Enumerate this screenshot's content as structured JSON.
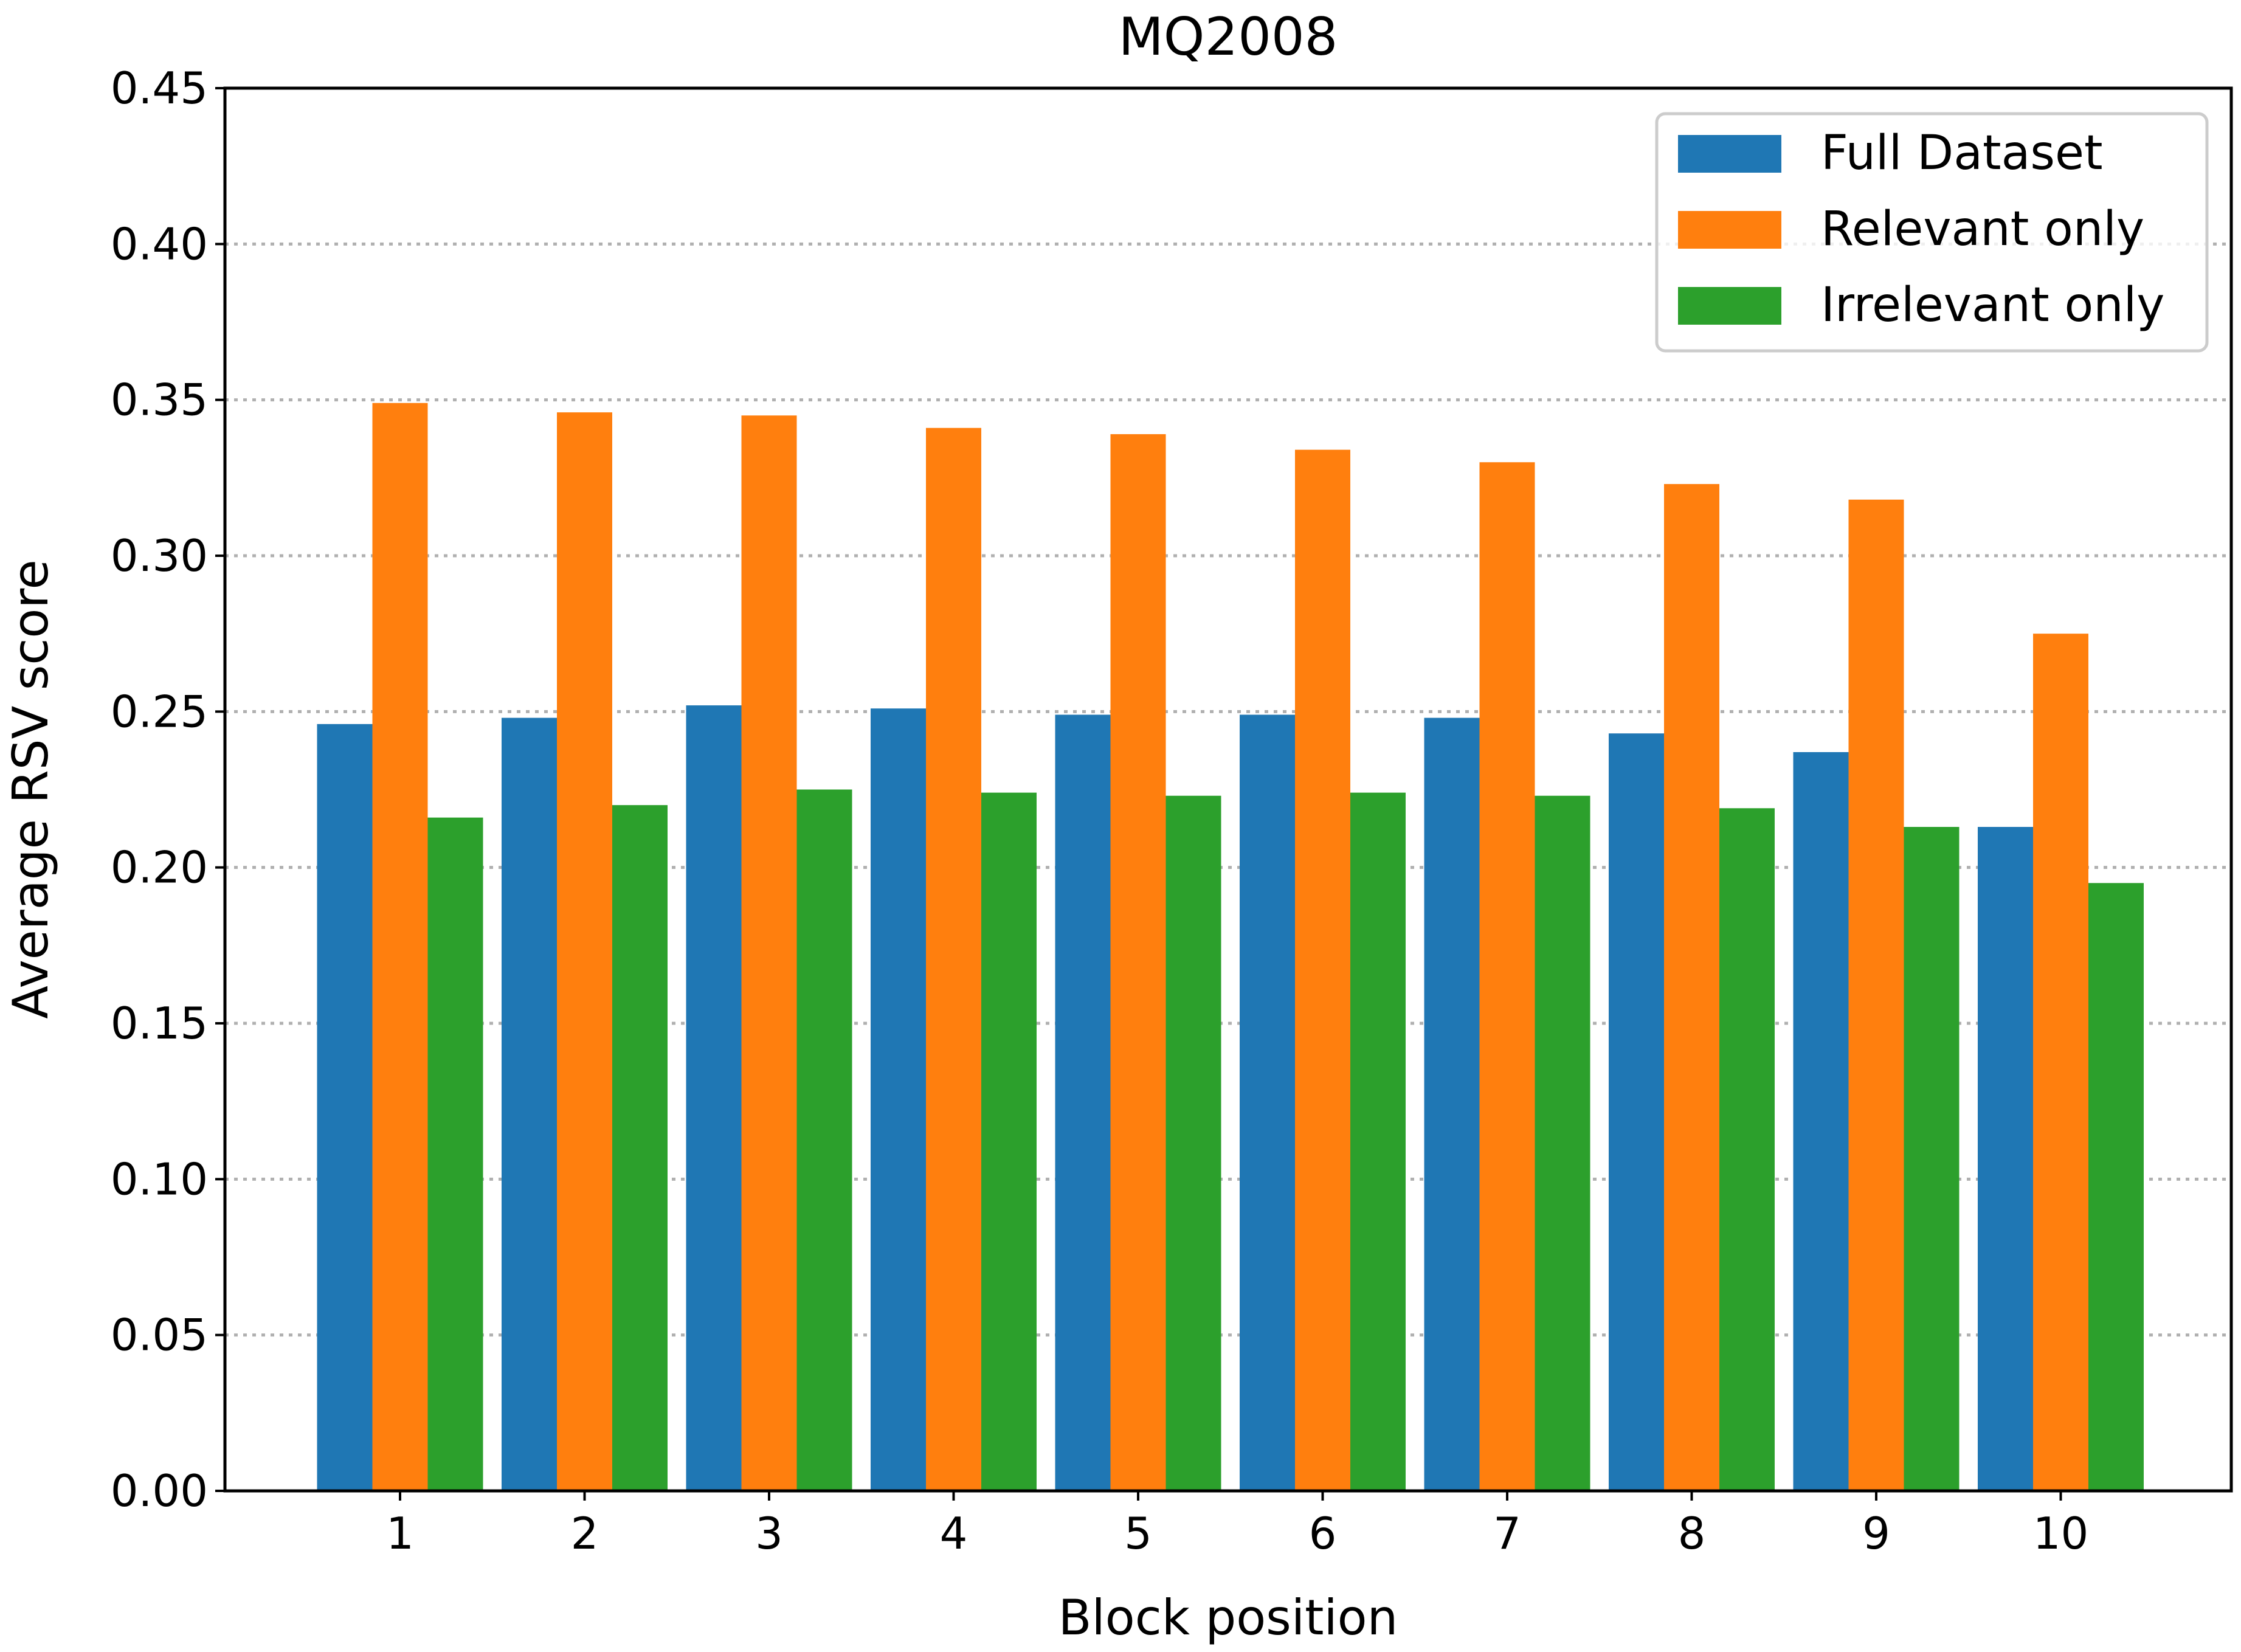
{
  "chart_data": {
    "type": "bar",
    "title": "MQ2008",
    "xlabel": "Block position",
    "ylabel": "Average RSV score",
    "ylim": [
      0,
      0.45
    ],
    "yticks": [
      "0.00",
      "0.05",
      "0.10",
      "0.15",
      "0.20",
      "0.25",
      "0.30",
      "0.35",
      "0.40",
      "0.45"
    ],
    "categories": [
      "1",
      "2",
      "3",
      "4",
      "5",
      "6",
      "7",
      "8",
      "9",
      "10"
    ],
    "grid": "horizontal dotted",
    "legend_position": "top-right",
    "series": [
      {
        "name": "Full Dataset",
        "color": "#1f77b4",
        "values": [
          0.246,
          0.248,
          0.252,
          0.251,
          0.249,
          0.249,
          0.248,
          0.243,
          0.237,
          0.213
        ]
      },
      {
        "name": "Relevant only",
        "color": "#ff7f0e",
        "values": [
          0.349,
          0.346,
          0.345,
          0.341,
          0.339,
          0.334,
          0.33,
          0.323,
          0.318,
          0.275
        ]
      },
      {
        "name": "Irrelevant only",
        "color": "#2ca02c",
        "values": [
          0.216,
          0.22,
          0.225,
          0.224,
          0.223,
          0.224,
          0.223,
          0.219,
          0.213,
          0.195
        ]
      }
    ]
  }
}
